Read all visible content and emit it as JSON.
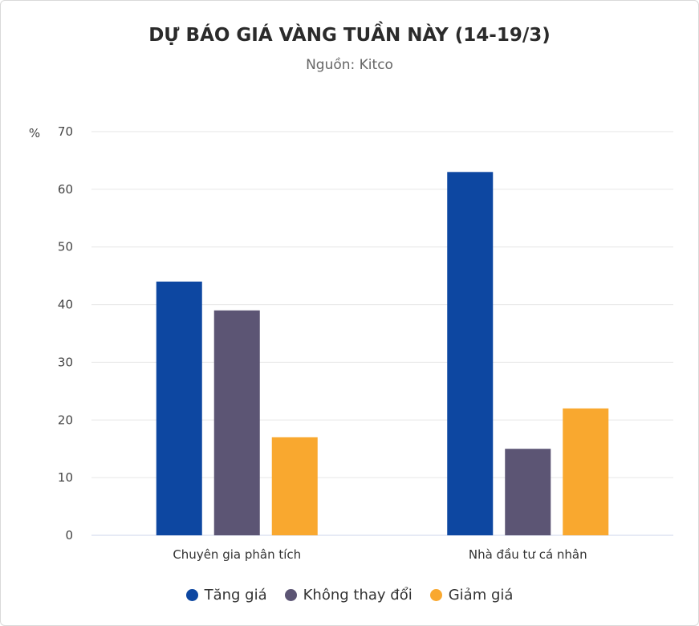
{
  "chart_data": {
    "type": "bar",
    "title": "DỰ BÁO GIÁ VÀNG TUẦN NÀY (14-19/3)",
    "subtitle": "Nguồn: Kitco",
    "ylabel": "%",
    "xlabel": "",
    "ylim": [
      0,
      70
    ],
    "yticks": [
      0,
      10,
      20,
      30,
      40,
      50,
      60,
      70
    ],
    "grid": true,
    "legend_position": "bottom",
    "categories": [
      "Chuyên gia phân tích",
      "Nhà đầu tư cá nhân"
    ],
    "series": [
      {
        "name": "Tăng giá",
        "color": "#0d47a1",
        "values": [
          44,
          63
        ]
      },
      {
        "name": "Không thay đổi",
        "color": "#5c5574",
        "values": [
          39,
          15
        ]
      },
      {
        "name": "Giảm giá",
        "color": "#f9a82f",
        "values": [
          17,
          22
        ]
      }
    ]
  }
}
